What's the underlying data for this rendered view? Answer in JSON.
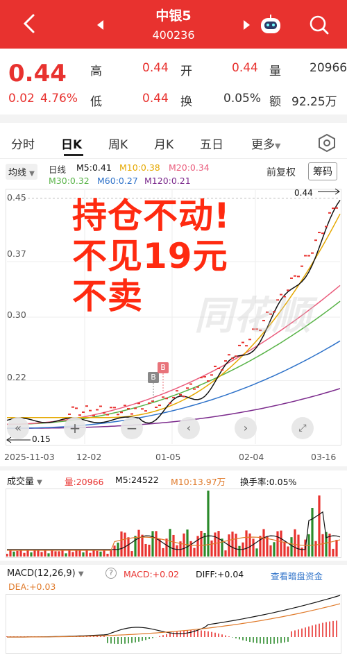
{
  "header": {
    "title": "中银5",
    "code": "400236"
  },
  "quote": {
    "price": "0.44",
    "change": "0.02",
    "change_pct": "4.76%",
    "high_label": "高",
    "high": "0.44",
    "low_label": "低",
    "low": "0.44",
    "open_label": "开",
    "open": "0.44",
    "turnover_label": "换",
    "turnover": "0.05%",
    "volume_label": "量",
    "volume": "20966",
    "amount_label": "额",
    "amount": "92.25万"
  },
  "tabs": [
    "分时",
    "日K",
    "周K",
    "月K",
    "五日",
    "更多"
  ],
  "active_tab": "日K",
  "chart_header": {
    "ma_select": "均线",
    "period": "日线",
    "ma5": "M5:0.41",
    "ma10": "M10:0.38",
    "ma20": "M20:0.34",
    "ma30": "M30:0.32",
    "ma60": "M60:0.27",
    "ma120": "M120:0.21",
    "adjust": "前复权",
    "chips": "筹码"
  },
  "overlay_text": [
    "持仓不动!",
    "不见19元",
    "不卖"
  ],
  "watermark": "同花顺",
  "chart_data": {
    "type": "line",
    "y_ticks": [
      "0.45",
      "0.37",
      "0.30",
      "0.22"
    ],
    "ylim": [
      0.14,
      0.46
    ],
    "x_ticks": [
      "2025-11-03",
      "12-02",
      "01-05",
      "02-04",
      "03-16"
    ],
    "high_marker": "0.44",
    "low_marker": "0.15",
    "trade_marks": [
      "B",
      "B"
    ],
    "ma_colors": {
      "ma5": "#111111",
      "ma10": "#e5a800",
      "ma20": "#ea5c7c",
      "ma30": "#58b347",
      "ma60": "#2e72c9",
      "ma120": "#7b2a8c"
    }
  },
  "volume": {
    "select": "成交量",
    "vol": "量:20966",
    "m5": "M5:24522",
    "m10": "M10:13.97万",
    "turnover": "换手率:0.05%"
  },
  "macd": {
    "select": "MACD(12,26,9)",
    "help": "?",
    "macd": "MACD:+0.02",
    "diff": "DIFF:+0.04",
    "dea": "DEA:+0.03",
    "link": "查看暗盘资金"
  },
  "colors": {
    "up": "#e8322f",
    "down": "#2b8a2b",
    "accent": "#e8322f",
    "blue": "#2e72c9"
  }
}
